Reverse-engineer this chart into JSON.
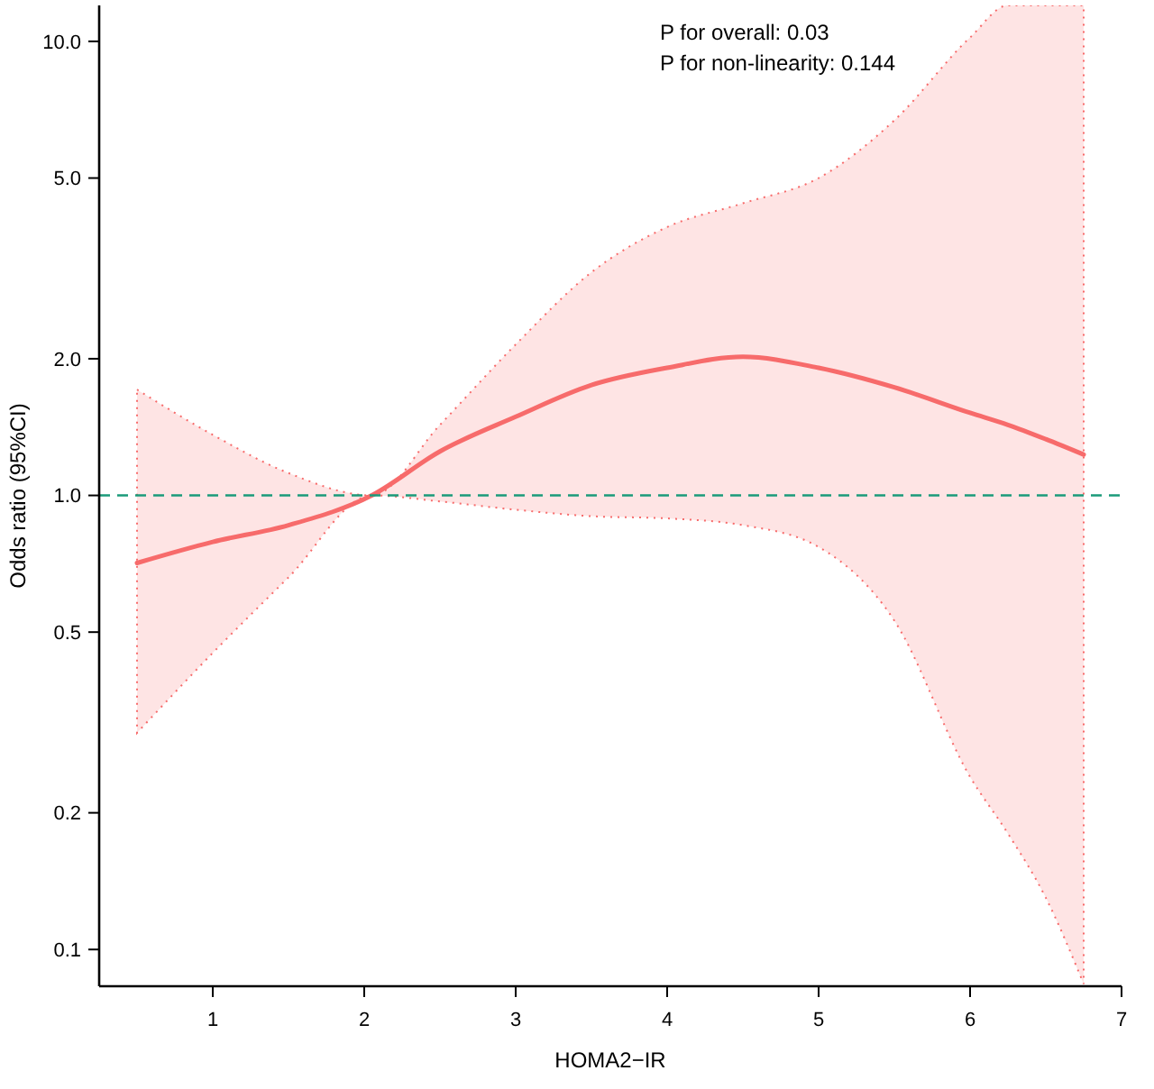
{
  "chart_data": {
    "type": "line",
    "xlabel": "HOMA2−IR",
    "ylabel": "Odds ratio (95%CI)",
    "annotations": [
      "P for overall: 0.03",
      "P for non-linearity: 0.144"
    ],
    "x": [
      0.5,
      1,
      1.5,
      2.05,
      2.5,
      3,
      3.5,
      4,
      4.5,
      5,
      5.5,
      6,
      6.25,
      6.5,
      6.75
    ],
    "series": [
      {
        "color": "#f76b6b",
        "values": [
          0.71,
          0.79,
          0.86,
          1.0,
          1.25,
          1.49,
          1.75,
          1.91,
          2.02,
          1.91,
          1.73,
          1.52,
          1.43,
          1.33,
          1.23
        ],
        "lower": [
          0.3,
          0.45,
          0.66,
          1.0,
          0.97,
          0.93,
          0.9,
          0.89,
          0.86,
          0.77,
          0.53,
          0.24,
          0.18,
          0.13,
          0.084
        ],
        "upper": [
          1.71,
          1.36,
          1.12,
          1.0,
          1.43,
          2.15,
          3.1,
          3.9,
          4.4,
          5.0,
          6.7,
          10.2,
          12,
          12,
          12
        ]
      }
    ],
    "xlim": [
      0.25,
      7
    ],
    "xticks": [
      1,
      2,
      3,
      4,
      5,
      6,
      7
    ],
    "ylim": [
      0.083,
      12
    ],
    "yticks": [
      0.1,
      0.2,
      0.5,
      {
        "value": 1,
        "label": "1.0"
      },
      {
        "value": 2,
        "label": "2.0"
      },
      {
        "value": 5,
        "label": "5.0"
      },
      {
        "value": 10,
        "label": "10.0"
      }
    ],
    "log": true,
    "grid": false,
    "line_style": "solid",
    "ref_lines": [
      {
        "axis": "y",
        "value": 1,
        "color": "#1a9a7a",
        "line_style": "dashed"
      }
    ]
  }
}
